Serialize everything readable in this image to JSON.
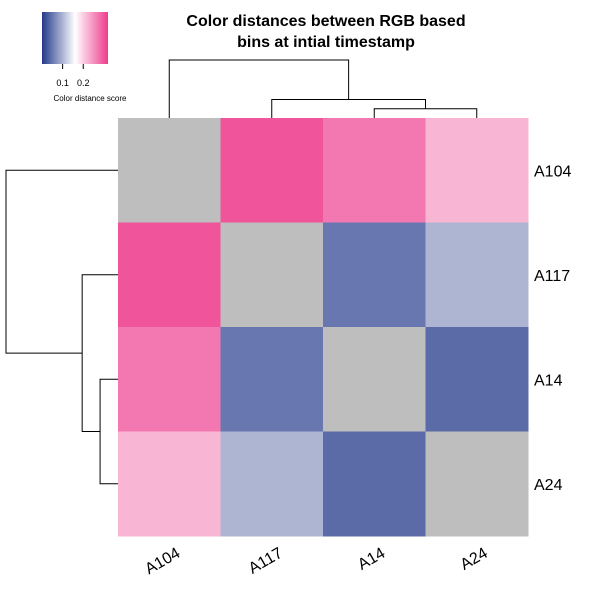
{
  "chart_data": {
    "type": "heatmap",
    "title_lines": [
      "Color distances between RGB based",
      "bins at intial timestamp"
    ],
    "rows": [
      "A104",
      "A117",
      "A14",
      "A24"
    ],
    "columns": [
      "A104",
      "A117",
      "A14",
      "A24"
    ],
    "values": [
      [
        null,
        0.3,
        0.27,
        0.22
      ],
      [
        0.3,
        null,
        0.05,
        0.1
      ],
      [
        0.27,
        0.05,
        null,
        0.04
      ],
      [
        0.22,
        0.1,
        0.04,
        null
      ]
    ],
    "diagonal_color": "#bebebe",
    "color_scale": {
      "min": 0.0,
      "max": 0.32,
      "stops": [
        "#24398a",
        "#ffffff",
        "#ee3b8d"
      ],
      "ticks": [
        "0.1",
        "0.2"
      ],
      "tick_values": [
        0.1,
        0.2
      ],
      "title": "Color distance score"
    },
    "dendrogram": {
      "order": [
        "A104",
        "A117",
        "A14",
        "A24"
      ],
      "merges": [
        {
          "left": "A14",
          "right": "A24",
          "height": 0.04
        },
        {
          "left": "A117",
          "right": "A14+A24",
          "height": 0.08
        },
        {
          "left": "A104",
          "right": "A117+A14+A24",
          "height": 0.25
        }
      ],
      "max_height": 0.25
    },
    "legend_placement": "top-left"
  }
}
